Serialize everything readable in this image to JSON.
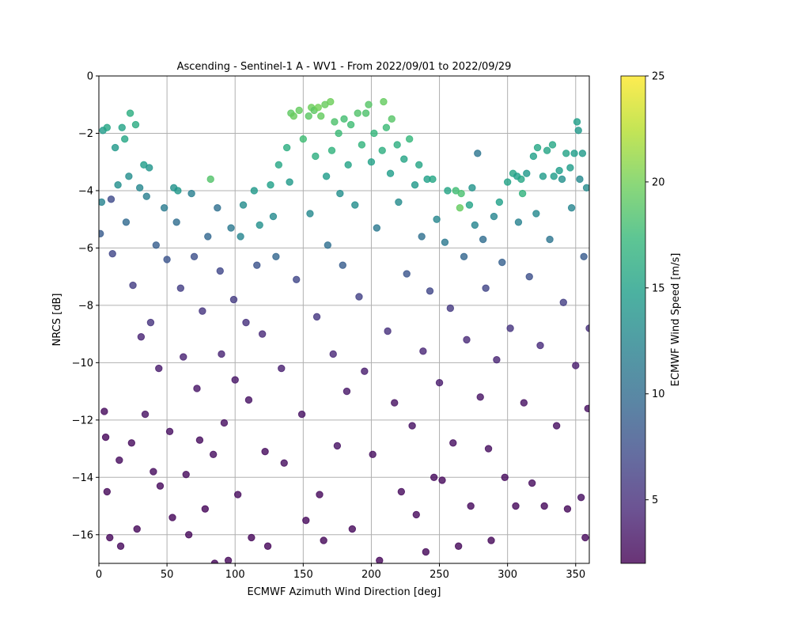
{
  "chart_data": {
    "type": "scatter",
    "title": "Ascending - Sentinel-1 A - WV1 - From 2022/09/01 to 2022/09/29",
    "xlabel": "ECMWF Azimuth Wind Direction [deg]",
    "ylabel": "NRCS [dB]",
    "xlim": [
      0,
      360
    ],
    "ylim": [
      -17,
      0
    ],
    "xticks": [
      0,
      50,
      100,
      150,
      200,
      250,
      300,
      350
    ],
    "yticks": [
      0,
      -2,
      -4,
      -6,
      -8,
      -10,
      -12,
      -14,
      -16
    ],
    "grid": true,
    "colorbar": {
      "label": "ECMWF Wind Speed [m/s]",
      "colormap": "viridis",
      "range": [
        2,
        25
      ],
      "ticks": [
        5,
        10,
        15,
        20,
        25
      ]
    },
    "colormap_stops": [
      "#440154",
      "#482878",
      "#3e4989",
      "#31688e",
      "#26828e",
      "#1f9e89",
      "#35b779",
      "#6ece58",
      "#b5de2b",
      "#fde725"
    ],
    "marker_alpha": 0.8,
    "series": [
      {
        "points": [
          [
            1,
            -5.5,
            8.5
          ],
          [
            2,
            -4.4,
            12.2
          ],
          [
            3,
            -1.9,
            14.5
          ],
          [
            4,
            -11.7,
            2.5
          ],
          [
            5,
            -12.6,
            2.2
          ],
          [
            6,
            -1.8,
            15.5
          ],
          [
            6,
            -14.5,
            2.3
          ],
          [
            8,
            -16.1,
            2.2
          ],
          [
            9,
            -4.3,
            7.2
          ],
          [
            10,
            -6.2,
            6.8
          ],
          [
            12,
            -2.5,
            14.2
          ],
          [
            14,
            -3.8,
            13.4
          ],
          [
            15,
            -13.4,
            2.6
          ],
          [
            16,
            -16.4,
            2.4
          ],
          [
            17,
            -1.8,
            15.2
          ],
          [
            19,
            -2.2,
            15.6
          ],
          [
            20,
            -5.1,
            9.8
          ],
          [
            22,
            -3.5,
            13.2
          ],
          [
            23,
            -1.3,
            16.2
          ],
          [
            24,
            -12.8,
            2.5
          ],
          [
            25,
            -7.3,
            6.1
          ],
          [
            27,
            -1.7,
            16.0
          ],
          [
            28,
            -15.8,
            2.3
          ],
          [
            30,
            -3.9,
            12.6
          ],
          [
            31,
            -9.1,
            4.2
          ],
          [
            33,
            -3.1,
            14.8
          ],
          [
            34,
            -11.8,
            3.0
          ],
          [
            35,
            -4.2,
            11.8
          ],
          [
            37,
            -3.2,
            14.0
          ],
          [
            38,
            -8.6,
            5.3
          ],
          [
            40,
            -13.8,
            2.6
          ],
          [
            42,
            -5.9,
            8.8
          ],
          [
            44,
            -10.2,
            3.6
          ],
          [
            45,
            -14.3,
            2.4
          ],
          [
            48,
            -4.6,
            11.5
          ],
          [
            50,
            -6.4,
            7.9
          ],
          [
            52,
            -12.4,
            2.8
          ],
          [
            54,
            -15.4,
            2.2
          ],
          [
            55,
            -3.9,
            13.6
          ],
          [
            57,
            -5.1,
            10.2
          ],
          [
            58,
            -4.0,
            14.1
          ],
          [
            60,
            -7.4,
            6.2
          ],
          [
            62,
            -9.8,
            4.1
          ],
          [
            64,
            -13.9,
            2.5
          ],
          [
            66,
            -16.0,
            2.3
          ],
          [
            68,
            -4.1,
            11.8
          ],
          [
            70,
            -6.3,
            7.6
          ],
          [
            72,
            -10.9,
            3.2
          ],
          [
            74,
            -12.7,
            2.6
          ],
          [
            76,
            -8.2,
            5.4
          ],
          [
            78,
            -15.1,
            2.2
          ],
          [
            80,
            -5.6,
            9.6
          ],
          [
            82,
            -3.6,
            18.6
          ],
          [
            84,
            -13.2,
            2.7
          ],
          [
            85,
            -17.0,
            2.2
          ],
          [
            87,
            -4.6,
            10.4
          ],
          [
            89,
            -6.8,
            6.9
          ],
          [
            90,
            -9.7,
            4.2
          ],
          [
            92,
            -12.1,
            2.8
          ],
          [
            95,
            -16.9,
            2.3
          ],
          [
            97,
            -5.3,
            11.2
          ],
          [
            99,
            -7.8,
            5.9
          ],
          [
            100,
            -10.6,
            3.2
          ],
          [
            102,
            -14.6,
            2.5
          ],
          [
            104,
            -5.6,
            12.4
          ],
          [
            106,
            -4.5,
            13.1
          ],
          [
            108,
            -8.6,
            5.2
          ],
          [
            110,
            -11.3,
            2.9
          ],
          [
            112,
            -16.1,
            2.2
          ],
          [
            114,
            -4.0,
            14.2
          ],
          [
            116,
            -6.6,
            7.8
          ],
          [
            118,
            -5.2,
            13.5
          ],
          [
            120,
            -9.0,
            4.6
          ],
          [
            122,
            -13.1,
            2.6
          ],
          [
            124,
            -16.4,
            2.2
          ],
          [
            126,
            -3.8,
            15.0
          ],
          [
            128,
            -4.9,
            12.9
          ],
          [
            130,
            -6.3,
            9.4
          ],
          [
            132,
            -3.1,
            15.6
          ],
          [
            134,
            -10.2,
            3.9
          ],
          [
            136,
            -13.5,
            2.7
          ],
          [
            138,
            -2.5,
            16.2
          ],
          [
            140,
            -3.7,
            14.4
          ],
          [
            141,
            -1.3,
            19.2
          ],
          [
            143,
            -1.4,
            19.6
          ],
          [
            145,
            -7.1,
            6.8
          ],
          [
            147,
            -1.2,
            19.4
          ],
          [
            149,
            -11.8,
            2.9
          ],
          [
            150,
            -2.2,
            17.8
          ],
          [
            152,
            -15.5,
            2.4
          ],
          [
            154,
            -1.4,
            19.0
          ],
          [
            155,
            -4.8,
            12.8
          ],
          [
            156,
            -1.1,
            19.8
          ],
          [
            158,
            -1.2,
            19.1
          ],
          [
            159,
            -2.8,
            16.4
          ],
          [
            160,
            -8.4,
            5.6
          ],
          [
            161,
            -1.1,
            20.0
          ],
          [
            162,
            -14.6,
            2.4
          ],
          [
            163,
            -1.4,
            19.4
          ],
          [
            165,
            -16.2,
            2.3
          ],
          [
            166,
            -1.0,
            19.6
          ],
          [
            167,
            -3.5,
            14.6
          ],
          [
            168,
            -5.9,
            10.3
          ],
          [
            170,
            -0.9,
            19.8
          ],
          [
            171,
            -2.6,
            16.8
          ],
          [
            172,
            -9.7,
            4.5
          ],
          [
            173,
            -1.6,
            18.4
          ],
          [
            175,
            -12.9,
            2.9
          ],
          [
            176,
            -2.0,
            17.6
          ],
          [
            177,
            -4.1,
            13.4
          ],
          [
            179,
            -6.6,
            8.6
          ],
          [
            180,
            -1.5,
            18.0
          ],
          [
            182,
            -11.0,
            3.3
          ],
          [
            183,
            -3.1,
            15.2
          ],
          [
            185,
            -1.7,
            17.8
          ],
          [
            186,
            -15.8,
            2.4
          ],
          [
            188,
            -4.5,
            13.2
          ],
          [
            190,
            -1.3,
            18.6
          ],
          [
            191,
            -7.7,
            6.4
          ],
          [
            193,
            -2.4,
            16.9
          ],
          [
            195,
            -10.3,
            3.8
          ],
          [
            196,
            -1.3,
            18.4
          ],
          [
            198,
            -1.0,
            18.8
          ],
          [
            200,
            -3.0,
            15.1
          ],
          [
            201,
            -13.2,
            2.7
          ],
          [
            202,
            -2.0,
            17.1
          ],
          [
            204,
            -5.3,
            11.2
          ],
          [
            206,
            -16.9,
            2.2
          ],
          [
            208,
            -2.6,
            16.4
          ],
          [
            209,
            -0.9,
            19.4
          ],
          [
            211,
            -1.8,
            17.6
          ],
          [
            212,
            -8.9,
            5.1
          ],
          [
            214,
            -3.4,
            14.8
          ],
          [
            215,
            -1.5,
            18.8
          ],
          [
            217,
            -11.4,
            3.0
          ],
          [
            219,
            -2.4,
            16.4
          ],
          [
            220,
            -4.4,
            13.0
          ],
          [
            222,
            -14.5,
            2.5
          ],
          [
            224,
            -2.9,
            15.4
          ],
          [
            226,
            -6.9,
            8.0
          ],
          [
            228,
            -2.2,
            17.2
          ],
          [
            230,
            -12.2,
            2.9
          ],
          [
            232,
            -3.8,
            14.2
          ],
          [
            233,
            -15.3,
            2.4
          ],
          [
            235,
            -3.1,
            15.4
          ],
          [
            237,
            -5.6,
            10.4
          ],
          [
            238,
            -9.6,
            4.4
          ],
          [
            240,
            -16.6,
            2.3
          ],
          [
            241,
            -3.6,
            15.0
          ],
          [
            243,
            -7.5,
            6.8
          ],
          [
            245,
            -3.6,
            15.6
          ],
          [
            246,
            -14.0,
            2.5
          ],
          [
            248,
            -5.0,
            12.6
          ],
          [
            250,
            -10.7,
            3.6
          ],
          [
            252,
            -14.1,
            2.4
          ],
          [
            254,
            -5.8,
            11.2
          ],
          [
            256,
            -4.0,
            15.4
          ],
          [
            258,
            -8.1,
            5.8
          ],
          [
            260,
            -12.8,
            2.8
          ],
          [
            262,
            -4.0,
            17.8
          ],
          [
            264,
            -16.4,
            2.3
          ],
          [
            265,
            -4.6,
            19.4
          ],
          [
            266,
            -4.1,
            18.2
          ],
          [
            268,
            -6.3,
            9.4
          ],
          [
            270,
            -9.2,
            4.6
          ],
          [
            272,
            -4.5,
            15.2
          ],
          [
            273,
            -15.0,
            2.5
          ],
          [
            274,
            -3.9,
            13.8
          ],
          [
            276,
            -5.2,
            12.4
          ],
          [
            278,
            -2.7,
            10.8
          ],
          [
            280,
            -11.2,
            3.1
          ],
          [
            282,
            -5.7,
            10.2
          ],
          [
            284,
            -7.4,
            6.7
          ],
          [
            286,
            -13.0,
            2.7
          ],
          [
            288,
            -16.2,
            2.3
          ],
          [
            290,
            -4.9,
            12.4
          ],
          [
            292,
            -9.9,
            4.2
          ],
          [
            294,
            -4.4,
            15.0
          ],
          [
            296,
            -6.5,
            8.9
          ],
          [
            298,
            -14.0,
            2.5
          ],
          [
            300,
            -3.7,
            15.2
          ],
          [
            302,
            -8.8,
            5.4
          ],
          [
            304,
            -3.4,
            15.4
          ],
          [
            306,
            -15.0,
            2.4
          ],
          [
            307,
            -3.5,
            14.9
          ],
          [
            308,
            -5.1,
            12.1
          ],
          [
            310,
            -3.6,
            15.6
          ],
          [
            311,
            -4.1,
            16.8
          ],
          [
            312,
            -11.4,
            3.0
          ],
          [
            314,
            -3.4,
            14.3
          ],
          [
            316,
            -7.0,
            7.6
          ],
          [
            318,
            -14.2,
            2.6
          ],
          [
            319,
            -2.8,
            15.0
          ],
          [
            321,
            -4.8,
            12.8
          ],
          [
            322,
            -2.5,
            15.6
          ],
          [
            324,
            -9.4,
            4.8
          ],
          [
            326,
            -3.5,
            14.5
          ],
          [
            327,
            -15.0,
            2.4
          ],
          [
            329,
            -2.6,
            15.4
          ],
          [
            331,
            -5.7,
            10.8
          ],
          [
            333,
            -2.4,
            15.6
          ],
          [
            334,
            -3.5,
            14.6
          ],
          [
            336,
            -12.2,
            2.8
          ],
          [
            338,
            -3.3,
            14.8
          ],
          [
            340,
            -3.6,
            13.5
          ],
          [
            341,
            -7.9,
            6.2
          ],
          [
            343,
            -2.7,
            15.2
          ],
          [
            344,
            -15.1,
            2.3
          ],
          [
            346,
            -3.2,
            14.6
          ],
          [
            347,
            -4.6,
            12.4
          ],
          [
            349,
            -2.7,
            14.8
          ],
          [
            350,
            -10.1,
            3.8
          ],
          [
            351,
            -1.6,
            14.9
          ],
          [
            352,
            -1.9,
            14.2
          ],
          [
            353,
            -3.6,
            12.8
          ],
          [
            354,
            -14.7,
            2.8
          ],
          [
            355,
            -2.7,
            14.4
          ],
          [
            356,
            -6.3,
            8.5
          ],
          [
            357,
            -16.1,
            2.4
          ],
          [
            358,
            -3.9,
            13.0
          ],
          [
            359,
            -11.6,
            2.8
          ],
          [
            360,
            -8.8,
            5.0
          ]
        ]
      }
    ]
  }
}
